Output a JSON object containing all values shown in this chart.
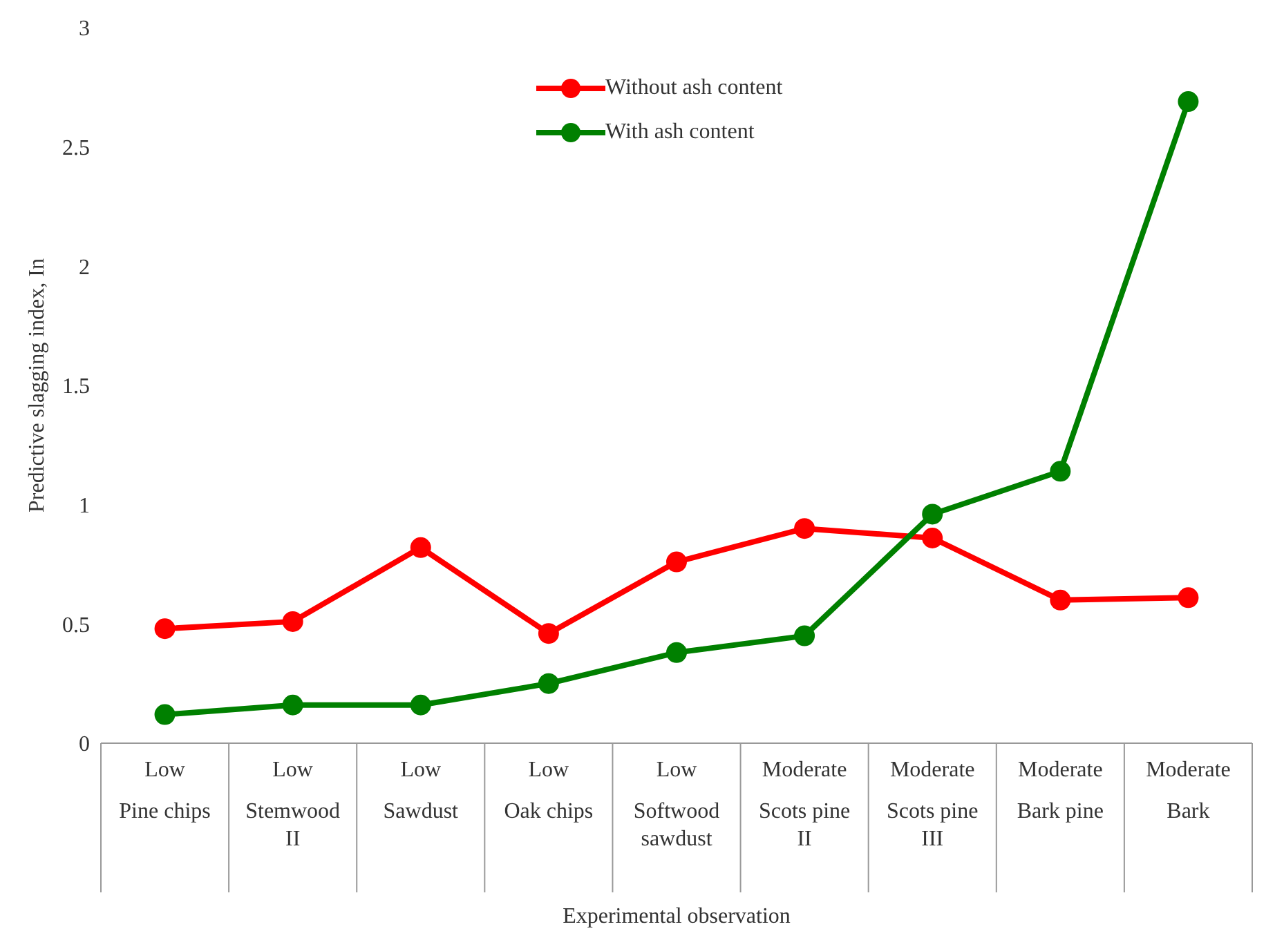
{
  "chart_data": {
    "type": "line",
    "xlabel": "Experimental observation",
    "ylabel": "Predictive slagging index, In",
    "categories": [
      "Low\nPine chips",
      "Low\nStemwood II",
      "Low\nSawdust",
      "Low\nOak chips",
      "Low\nSoftwood sawdust",
      "Moderate\nScots pine II",
      "Moderate\nScots pine III",
      "Moderate\nBark pine",
      "Moderate\nBark"
    ],
    "series": [
      {
        "name": "Without ash content",
        "color": "#ff0000",
        "values": [
          0.48,
          0.51,
          0.82,
          0.46,
          0.76,
          0.9,
          0.86,
          0.6,
          0.61
        ]
      },
      {
        "name": "With ash content",
        "color": "#008000",
        "values": [
          0.12,
          0.16,
          0.16,
          0.25,
          0.38,
          0.45,
          0.96,
          1.14,
          2.69
        ]
      }
    ],
    "ylim": [
      0,
      3
    ],
    "yticks": [
      0,
      0.5,
      1,
      1.5,
      2,
      2.5,
      3
    ],
    "grid": false,
    "legend": "top",
    "marker": "circle",
    "line_style": "solid"
  }
}
